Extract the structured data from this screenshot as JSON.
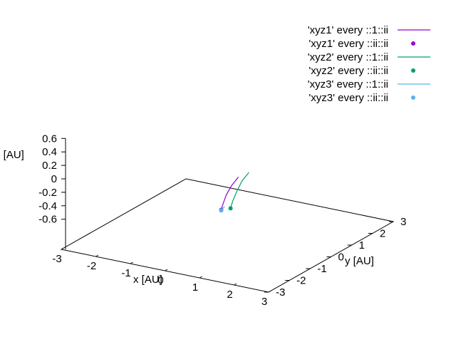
{
  "chart_data": {
    "type": "scatter",
    "dimensions": 3,
    "title": "",
    "xlabel": "x [AU]",
    "ylabel": "y [AU]",
    "zlabel": "z [AU]",
    "xlim": [
      -3,
      3
    ],
    "ylim": [
      -3,
      3
    ],
    "zlim": [
      -0.6,
      0.6
    ],
    "x_ticks": [
      "-3",
      "-2",
      "-1",
      "0",
      "1",
      "2",
      "3"
    ],
    "y_ticks": [
      "-3",
      "-2",
      "-1",
      "0",
      "1",
      "2",
      "3"
    ],
    "z_ticks": [
      "0.6",
      "0.4",
      "0.2",
      "0",
      "-0.2",
      "-0.4",
      "-0.6"
    ],
    "grid": false,
    "legend_position": "top-right",
    "series": [
      {
        "name": "'xyz1' every ::1::ii",
        "style": "line",
        "color": "#9400d3",
        "points": [
          [
            -1.45,
            2.95,
            0.2
          ],
          [
            -1.65,
            2.95,
            0.05
          ],
          [
            -1.8,
            2.95,
            -0.1
          ],
          [
            -1.9,
            2.95,
            -0.25
          ],
          [
            -1.95,
            2.95,
            -0.34
          ]
        ]
      },
      {
        "name": "'xyz1' every ::ii::ii",
        "style": "points",
        "color": "#9400d3",
        "points": [
          [
            -1.95,
            2.95,
            -0.34
          ]
        ]
      },
      {
        "name": "'xyz2' every ::1::ii",
        "style": "line",
        "color": "#009e73",
        "points": [
          [
            -1.15,
            2.95,
            0.3
          ],
          [
            -1.35,
            2.95,
            0.15
          ],
          [
            -1.5,
            2.95,
            -0.02
          ],
          [
            -1.62,
            2.95,
            -0.18
          ],
          [
            -1.68,
            2.95,
            -0.29
          ]
        ]
      },
      {
        "name": "'xyz2' every ::ii::ii",
        "style": "points",
        "color": "#009e73",
        "points": [
          [
            -1.68,
            2.95,
            -0.29
          ]
        ]
      },
      {
        "name": "'xyz3' every ::1::ii",
        "style": "line",
        "color": "#56b4e9",
        "points": [
          [
            -1.85,
            2.95,
            -0.28
          ],
          [
            -1.9,
            2.95,
            -0.31
          ],
          [
            -1.95,
            2.95,
            -0.35
          ]
        ]
      },
      {
        "name": "'xyz3' every ::ii::ii",
        "style": "points",
        "color": "#56b4e9",
        "points": [
          [
            -1.95,
            2.95,
            -0.35
          ]
        ]
      }
    ]
  }
}
